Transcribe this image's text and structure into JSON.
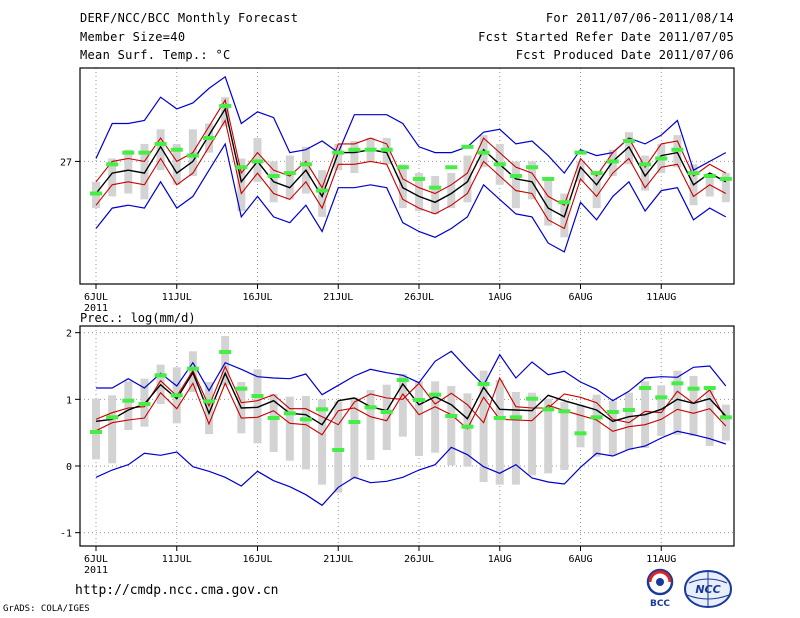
{
  "header": {
    "title": "DERF/NCC/BCC Monthly Forecast",
    "member_size": "Member Size=40",
    "variable": "Mean Surf. Temp.: °C",
    "period": "For 2011/07/06-2011/08/14",
    "started": "Fcst Started Refer Date 2011/07/05",
    "produced": "Fcst Produced Date 2011/07/06"
  },
  "panel2_title": "Prec.: log(mm/d)",
  "footer": {
    "url": "http://cmdp.ncc.cma.gov.cn",
    "grads": "GrADS: COLA/IGES",
    "logo_bcc": "BCC",
    "logo_ncc": "NCC"
  },
  "colors": {
    "max_min": "#0000cc",
    "spread": "#cc0000",
    "mean": "#000000",
    "obs": "#44ee44",
    "box": "#d3d3d3",
    "grid": "#999999"
  },
  "chart_data": [
    {
      "type": "line",
      "title": "Mean Surf. Temp.: °C",
      "x_ticks": [
        "6JUL",
        "11JUL",
        "16JUL",
        "21JUL",
        "26JUL",
        "1AUG",
        "6AUG",
        "11AUG"
      ],
      "x_year": "2011",
      "y_ticks": [
        {
          "value": 27,
          "label": "27"
        }
      ],
      "ylim": [
        22.8,
        30.2
      ],
      "days": 40,
      "series": [
        {
          "name": "max",
          "values": [
            27.1,
            28.3,
            28.3,
            28.4,
            29.2,
            28.8,
            29.0,
            29.5,
            29.9,
            28.3,
            28.7,
            28.5,
            27.3,
            27.4,
            27.7,
            27.3,
            28.6,
            28.6,
            28.6,
            28.3,
            27.5,
            27.3,
            27.3,
            27.5,
            28.0,
            28.1,
            27.6,
            27.7,
            27.2,
            26.6,
            27.4,
            27.2,
            27.3,
            27.8,
            27.6,
            27.9,
            28.4,
            26.7,
            27.0,
            27.3
          ]
        },
        {
          "name": "upper",
          "values": [
            26.3,
            27.0,
            27.1,
            27.0,
            27.8,
            27.0,
            27.3,
            28.2,
            29.1,
            26.6,
            27.3,
            26.7,
            26.5,
            27.0,
            26.1,
            27.6,
            27.6,
            27.8,
            27.6,
            26.4,
            26.1,
            25.9,
            26.2,
            26.6,
            27.8,
            27.3,
            26.8,
            26.6,
            25.8,
            25.5,
            27.1,
            26.5,
            27.3,
            27.8,
            26.8,
            27.6,
            27.7,
            26.5,
            26.9,
            26.6
          ]
        },
        {
          "name": "mean",
          "values": [
            25.9,
            26.6,
            26.7,
            26.6,
            27.5,
            26.6,
            27.0,
            27.9,
            28.8,
            26.3,
            27.0,
            26.3,
            26.1,
            26.7,
            25.8,
            27.3,
            27.3,
            27.4,
            27.3,
            26.1,
            25.8,
            25.6,
            25.9,
            26.3,
            27.4,
            26.9,
            26.4,
            26.3,
            25.4,
            25.1,
            26.8,
            26.2,
            27.0,
            27.5,
            26.5,
            27.2,
            27.3,
            26.2,
            26.6,
            26.3
          ]
        },
        {
          "name": "lower",
          "values": [
            25.5,
            26.2,
            26.3,
            26.2,
            27.1,
            26.2,
            26.6,
            27.5,
            28.4,
            25.9,
            26.6,
            25.9,
            25.7,
            26.3,
            25.4,
            26.9,
            26.9,
            27.0,
            26.9,
            25.7,
            25.4,
            25.2,
            25.5,
            25.9,
            27.0,
            26.5,
            26.0,
            25.9,
            25.0,
            24.7,
            26.4,
            25.8,
            26.6,
            27.1,
            26.1,
            26.8,
            26.9,
            25.8,
            26.2,
            25.9
          ]
        },
        {
          "name": "min",
          "values": [
            24.7,
            25.4,
            25.5,
            25.4,
            26.3,
            25.4,
            25.8,
            26.7,
            27.6,
            25.1,
            25.8,
            25.1,
            24.9,
            25.5,
            24.6,
            26.1,
            26.1,
            26.2,
            26.1,
            24.9,
            24.6,
            24.4,
            24.7,
            25.1,
            26.2,
            25.7,
            25.2,
            25.1,
            24.2,
            23.9,
            25.6,
            25.0,
            25.8,
            26.3,
            25.3,
            26.0,
            26.1,
            25.0,
            25.4,
            25.1
          ]
        },
        {
          "name": "obs",
          "values": [
            25.9,
            26.9,
            27.3,
            27.3,
            27.6,
            27.4,
            27.2,
            27.8,
            28.9,
            26.8,
            27.0,
            26.5,
            26.6,
            26.9,
            26.0,
            27.3,
            27.4,
            27.4,
            27.4,
            26.8,
            26.4,
            26.1,
            26.8,
            27.5,
            27.3,
            26.9,
            26.5,
            26.8,
            26.4,
            25.6,
            27.3,
            26.6,
            27.0,
            27.7,
            26.9,
            27.1,
            27.4,
            26.6,
            26.5,
            26.4
          ]
        },
        {
          "name": "box_high",
          "values": [
            26.3,
            27.1,
            27.4,
            27.6,
            28.1,
            27.6,
            28.1,
            28.3,
            29.2,
            27.1,
            27.8,
            27.0,
            27.2,
            27.5,
            26.7,
            27.6,
            27.7,
            27.8,
            27.8,
            26.9,
            26.6,
            26.5,
            26.6,
            27.2,
            27.9,
            27.6,
            27.0,
            27.0,
            26.4,
            25.9,
            27.0,
            26.6,
            27.4,
            28.0,
            27.2,
            27.6,
            27.9,
            26.9,
            26.6,
            26.6
          ]
        },
        {
          "name": "box_low",
          "values": [
            25.4,
            25.8,
            25.9,
            25.7,
            26.7,
            26.2,
            26.5,
            27.3,
            28.2,
            25.3,
            26.3,
            25.6,
            25.7,
            25.9,
            25.1,
            26.7,
            26.6,
            27.0,
            26.9,
            25.4,
            25.3,
            25.2,
            25.4,
            25.6,
            26.8,
            26.2,
            25.4,
            25.7,
            24.8,
            24.4,
            26.3,
            25.4,
            26.5,
            26.9,
            26.0,
            26.6,
            26.8,
            25.5,
            25.8,
            25.6
          ]
        }
      ]
    },
    {
      "type": "line",
      "title": "Prec.: log(mm/d)",
      "x_ticks": [
        "6JUL",
        "11JUL",
        "16JUL",
        "21JUL",
        "26JUL",
        "1AUG",
        "6AUG",
        "11AUG"
      ],
      "x_year": "2011",
      "y_ticks": [
        {
          "value": 2,
          "label": "2"
        },
        {
          "value": 1,
          "label": "1"
        },
        {
          "value": 0,
          "label": "0"
        },
        {
          "value": -1,
          "label": "-1"
        }
      ],
      "ylim": [
        -1.2,
        2.1
      ],
      "days": 40,
      "series": [
        {
          "name": "max",
          "values": [
            1.17,
            1.17,
            1.31,
            1.17,
            1.39,
            1.2,
            1.55,
            1.13,
            1.55,
            1.45,
            1.34,
            1.32,
            1.31,
            1.38,
            1.07,
            1.21,
            1.35,
            1.45,
            1.4,
            1.36,
            1.25,
            1.57,
            1.72,
            1.46,
            1.21,
            1.67,
            1.32,
            1.56,
            1.37,
            1.42,
            1.26,
            1.15,
            0.98,
            1.12,
            1.32,
            1.34,
            1.33,
            1.48,
            1.5,
            1.2
          ]
        },
        {
          "name": "upper",
          "values": [
            0.7,
            0.8,
            0.87,
            0.89,
            1.28,
            1.05,
            1.43,
            0.9,
            1.49,
            0.95,
            0.98,
            1.07,
            0.86,
            0.86,
            0.74,
            0.62,
            0.96,
            1.08,
            1.02,
            1.0,
            1.24,
            0.93,
            1.09,
            0.92,
            0.65,
            1.32,
            0.89,
            0.87,
            0.87,
            1.08,
            1.03,
            0.95,
            0.7,
            0.65,
            0.82,
            0.8,
            1.12,
            0.94,
            1.14,
            0.7
          ]
        },
        {
          "name": "mean",
          "values": [
            0.67,
            0.7,
            0.84,
            0.93,
            1.22,
            1.01,
            1.4,
            0.79,
            1.39,
            0.87,
            0.88,
            0.98,
            0.79,
            0.77,
            0.62,
            0.98,
            1.02,
            0.89,
            0.83,
            1.23,
            0.92,
            1.04,
            0.92,
            0.71,
            1.18,
            0.85,
            0.84,
            0.83,
            1.06,
            0.98,
            0.91,
            0.84,
            0.67,
            0.74,
            0.77,
            0.85,
            1.0,
            0.94,
            1.01,
            0.75
          ]
        },
        {
          "name": "lower",
          "values": [
            0.53,
            0.65,
            0.69,
            0.72,
            1.1,
            0.86,
            1.24,
            0.63,
            1.24,
            0.72,
            0.73,
            0.83,
            0.64,
            0.62,
            0.47,
            0.83,
            0.87,
            0.74,
            0.68,
            1.08,
            0.77,
            0.89,
            0.77,
            0.56,
            1.03,
            0.7,
            0.69,
            0.68,
            0.91,
            0.83,
            0.76,
            0.69,
            0.52,
            0.59,
            0.62,
            0.7,
            0.85,
            0.79,
            0.86,
            0.6
          ]
        },
        {
          "name": "min",
          "values": [
            -0.17,
            -0.06,
            0.02,
            0.19,
            0.16,
            0.21,
            -0.01,
            -0.08,
            -0.17,
            -0.3,
            -0.08,
            -0.22,
            -0.31,
            -0.43,
            -0.59,
            -0.32,
            -0.17,
            -0.25,
            -0.23,
            -0.17,
            -0.06,
            0.02,
            0.28,
            0.17,
            -0.01,
            -0.11,
            0.02,
            -0.18,
            -0.24,
            -0.27,
            -0.02,
            0.19,
            0.15,
            0.25,
            0.3,
            0.42,
            0.52,
            0.47,
            0.41,
            0.33
          ]
        },
        {
          "name": "obs",
          "values": [
            0.51,
            0.73,
            0.98,
            0.93,
            1.36,
            1.06,
            1.46,
            0.97,
            1.71,
            1.16,
            1.05,
            0.72,
            0.79,
            0.7,
            0.85,
            0.24,
            0.66,
            0.88,
            0.81,
            1.29,
            0.99,
            1.07,
            0.75,
            0.59,
            1.23,
            0.72,
            0.73,
            1.01,
            0.85,
            0.82,
            0.49,
            0.73,
            0.81,
            0.84,
            1.17,
            1.03,
            1.24,
            1.16,
            1.17,
            0.73
          ]
        },
        {
          "name": "box_high",
          "values": [
            1.01,
            1.06,
            1.27,
            1.31,
            1.52,
            1.48,
            1.72,
            1.26,
            1.95,
            1.26,
            1.45,
            1.08,
            1.04,
            1.05,
            1.0,
            0.97,
            1.03,
            1.14,
            1.22,
            1.38,
            1.27,
            1.27,
            1.2,
            1.09,
            1.43,
            1.29,
            1.11,
            1.1,
            1.01,
            0.96,
            0.92,
            1.07,
            0.98,
            1.1,
            1.27,
            1.21,
            1.43,
            1.35,
            1.16,
            0.92
          ]
        },
        {
          "name": "box_low",
          "values": [
            0.1,
            0.04,
            0.54,
            0.59,
            0.93,
            0.64,
            1.11,
            0.48,
            1.21,
            0.49,
            0.34,
            0.21,
            0.08,
            -0.05,
            -0.28,
            -0.4,
            -0.19,
            0.09,
            0.24,
            0.44,
            0.15,
            0.2,
            0.01,
            -0.01,
            -0.24,
            -0.28,
            -0.28,
            -0.14,
            -0.11,
            -0.06,
            0.28,
            0.14,
            0.15,
            0.24,
            0.27,
            0.45,
            0.47,
            0.45,
            0.3,
            0.38
          ]
        }
      ]
    }
  ]
}
